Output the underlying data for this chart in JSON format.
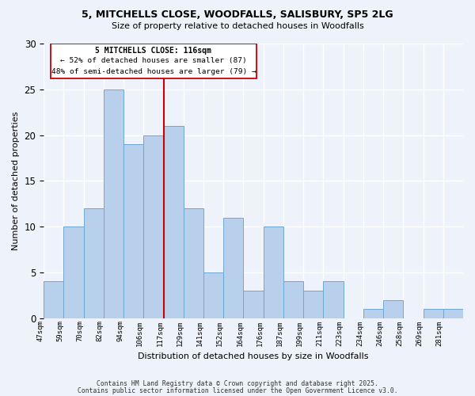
{
  "title1": "5, MITCHELLS CLOSE, WOODFALLS, SALISBURY, SP5 2LG",
  "title2": "Size of property relative to detached houses in Woodfalls",
  "xlabel": "Distribution of detached houses by size in Woodfalls",
  "ylabel": "Number of detached properties",
  "bin_labels": [
    "47sqm",
    "59sqm",
    "70sqm",
    "82sqm",
    "94sqm",
    "106sqm",
    "117sqm",
    "129sqm",
    "141sqm",
    "152sqm",
    "164sqm",
    "176sqm",
    "187sqm",
    "199sqm",
    "211sqm",
    "223sqm",
    "234sqm",
    "246sqm",
    "258sqm",
    "269sqm",
    "281sqm"
  ],
  "counts": [
    4,
    10,
    12,
    25,
    19,
    20,
    21,
    12,
    5,
    11,
    3,
    10,
    4,
    3,
    4,
    0,
    1,
    2,
    0,
    1,
    1
  ],
  "bar_color": "#b8d0eb",
  "bar_edge_color": "#6fa8d4",
  "vline_idx": 6,
  "vline_color": "#cc0000",
  "annotation_title": "5 MITCHELLS CLOSE: 116sqm",
  "annotation_line1": "← 52% of detached houses are smaller (87)",
  "annotation_line2": "48% of semi-detached houses are larger (79) →",
  "ylim": [
    0,
    30
  ],
  "yticks": [
    0,
    5,
    10,
    15,
    20,
    25,
    30
  ],
  "footer1": "Contains HM Land Registry data © Crown copyright and database right 2025.",
  "footer2": "Contains public sector information licensed under the Open Government Licence v3.0.",
  "bg_color": "#eef2fb",
  "grid_color": "#ffffff"
}
